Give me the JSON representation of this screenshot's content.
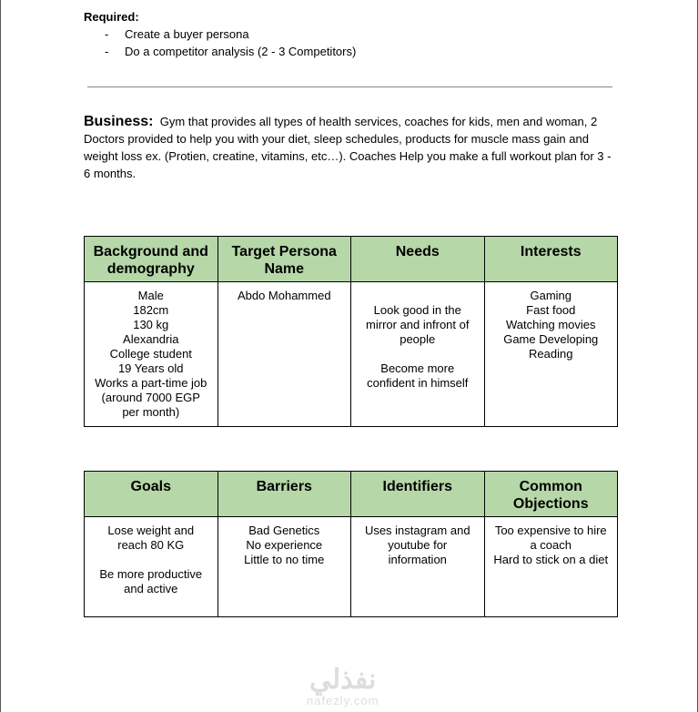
{
  "required": {
    "label": "Required:",
    "items": [
      "Create a buyer persona",
      "Do a competitor analysis (2 - 3 Competitors)"
    ],
    "bullet": "-"
  },
  "business": {
    "label": "Business:",
    "text": "Gym that provides all types of health services, coaches for kids, men and woman, 2 Doctors provided to help you with your diet, sleep schedules, products for muscle mass gain and weight loss ex. (Protien, creatine, vitamins, etc…). Coaches Help you make a full workout plan for 3 - 6 months."
  },
  "header_color": "#b6d7a8",
  "tables": [
    {
      "headers": [
        "Background and demography",
        "Target Persona Name",
        "Needs",
        "Interests"
      ],
      "cells": [
        [
          "Male",
          "182cm",
          "130 kg",
          "Alexandria",
          "College student",
          "19 Years old",
          "Works a part-time job",
          "(around 7000 EGP",
          "per month)"
        ],
        [
          "Abdo Mohammed"
        ],
        [
          "",
          "Look good in the",
          "mirror and infront of",
          "people",
          "",
          "Become more",
          "confident in himself"
        ],
        [
          "Gaming",
          "Fast food",
          "Watching movies",
          "Game Developing",
          "Reading"
        ]
      ]
    },
    {
      "headers": [
        "Goals",
        "Barriers",
        "Identifiers",
        "Common Objections"
      ],
      "cells": [
        [
          "Lose weight and",
          "reach 80 KG",
          "",
          "Be more productive",
          "and active"
        ],
        [
          "Bad Genetics",
          "No experience",
          "Little to no time"
        ],
        [
          "Uses instagram and",
          "youtube for",
          "information"
        ],
        [
          "Too expensive to hire",
          "a coach",
          "Hard to stick on a diet"
        ]
      ]
    }
  ],
  "watermark": {
    "arabic": "نفذلي",
    "latin": "nafezly.com"
  }
}
